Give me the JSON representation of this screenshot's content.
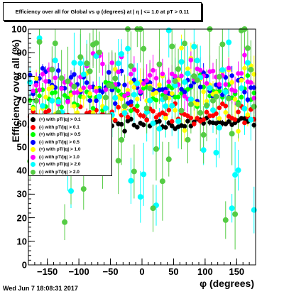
{
  "title": "Efficiency over all for Global vs φ (degrees) at | η | <= 1.0 at pT > 0.11",
  "timestamp": "Wed Jun  7 18:08:31 2017",
  "chart_data": {
    "type": "scatter",
    "title": "Efficiency over all for Global vs φ (degrees) at | η | <= 1.0 at pT > 0.11",
    "xlabel": "φ (degrees)",
    "ylabel": "Efficiency over all (%)",
    "xlim": [
      -180,
      180
    ],
    "ylim": [
      0,
      100
    ],
    "x_ticks": [
      -150,
      -100,
      -50,
      0,
      50,
      100,
      150
    ],
    "x_tick_labels": [
      "−150",
      "−100",
      "−50",
      "0",
      "50",
      "100",
      "150"
    ],
    "y_ticks": [
      0,
      10,
      20,
      30,
      40,
      50,
      60,
      70,
      80,
      90,
      100
    ],
    "y_tick_labels": [
      "0",
      "10",
      "20",
      "30",
      "40",
      "50",
      "60",
      "70",
      "80",
      "90",
      "100"
    ],
    "grid": false,
    "legend_position": "left-middle",
    "series": [
      {
        "name": "(+) with pT/|q| > 0.1",
        "color": "#000000",
        "mean": 60,
        "spread": 1.2,
        "err": 1.0,
        "seed": 11
      },
      {
        "name": "(-) with pT/|q| > 0.1",
        "color": "#ff0000",
        "mean": 64,
        "spread": 1.8,
        "err": 1.5,
        "seed": 23
      },
      {
        "name": "(+) with pT/|q| > 0.5",
        "color": "#00ff00",
        "mean": 73,
        "spread": 3.5,
        "err": 3.0,
        "seed": 37
      },
      {
        "name": "(-) with pT/|q| > 0.5",
        "color": "#0000ff",
        "mean": 76,
        "spread": 3.5,
        "err": 3.0,
        "seed": 41
      },
      {
        "name": "(+) with pT/|q| > 1.0",
        "color": "#ffff00",
        "mean": 72,
        "spread": 8,
        "err": 6,
        "seed": 53
      },
      {
        "name": "(-) with pT/|q| > 1.0",
        "color": "#ff00ff",
        "mean": 79,
        "spread": 5,
        "err": 5,
        "seed": 67
      },
      {
        "name": "(+) with pT/|q| > 2.0",
        "color": "#00ffff",
        "mean": 74,
        "spread": 14,
        "err": 10,
        "seed": 79
      },
      {
        "name": "(-) with pT/|q| > 2.0",
        "color": "#55cc44",
        "mean": 75,
        "spread": 17,
        "err": 12,
        "seed": 97
      }
    ],
    "bins": 72
  }
}
